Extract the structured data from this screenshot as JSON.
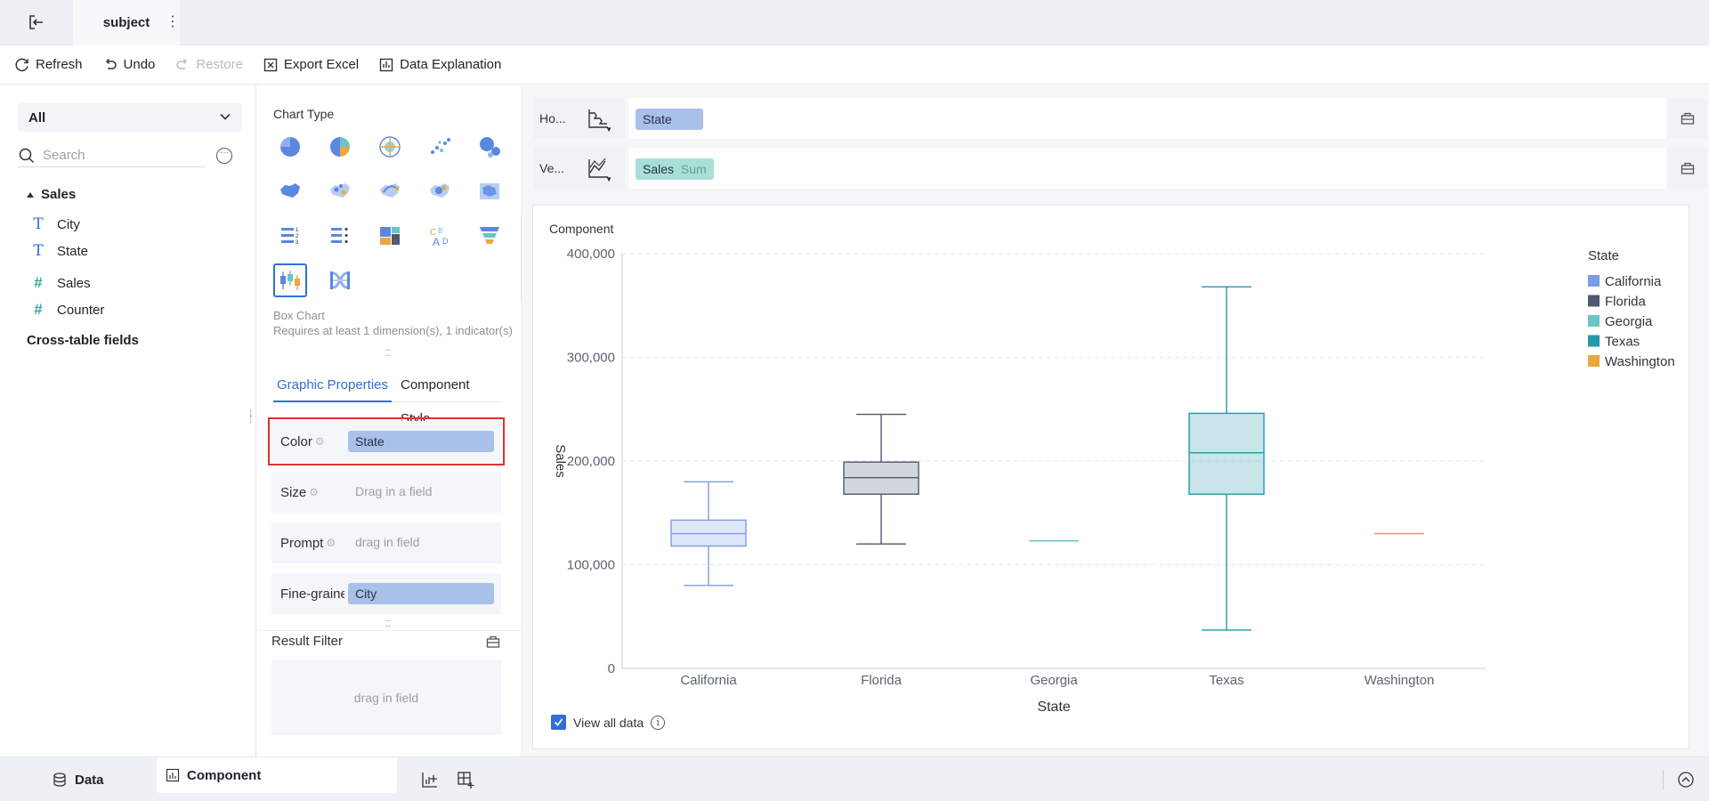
{
  "topbar": {
    "tab_title": "subject",
    "more_glyph": "⋮"
  },
  "toolbar": {
    "refresh": "Refresh",
    "undo": "Undo",
    "restore": "Restore",
    "export_excel": "Export Excel",
    "data_explanation": "Data Explanation"
  },
  "left": {
    "selector": "All",
    "search_placeholder": "Search",
    "groups": [
      {
        "name": "Sales",
        "fields": [
          {
            "name": "City",
            "type": "dimension"
          },
          {
            "name": "State",
            "type": "dimension"
          },
          {
            "name": "Sales",
            "type": "indicator"
          },
          {
            "name": "Counter",
            "type": "indicator"
          }
        ]
      },
      {
        "name": "Cross-table fields"
      }
    ]
  },
  "middle": {
    "chart_type_title": "Chart Type",
    "selected_chart_name": "Box Chart",
    "selected_chart_desc": "Requires at least 1 dimension(s), 1 indicator(s)",
    "tabs": [
      "Graphic Properties",
      "Component Style"
    ],
    "props": {
      "color": {
        "label": "Color",
        "value": "State"
      },
      "size": {
        "label": "Size",
        "placeholder": "Drag in a field"
      },
      "prompt": {
        "label": "Prompt",
        "placeholder": "drag in field"
      },
      "finegrain": {
        "label": "Fine-grained",
        "value": "City"
      }
    },
    "result_filter": {
      "title": "Result Filter",
      "placeholder": "drag in field"
    }
  },
  "right": {
    "horizontal": {
      "label": "Ho...",
      "field": "State"
    },
    "vertical": {
      "label": "Ve...",
      "field": "Sales",
      "agg": "Sum"
    },
    "component_title": "Component",
    "view_all_data": "View all data"
  },
  "bottom": {
    "data_tab": "Data",
    "component_tab": "Component"
  },
  "colors": {
    "California": "#7b9ce6",
    "Florida": "#4e5a6e",
    "Georgia": "#6cc4c4",
    "Texas": "#2698a8",
    "Washington": "#eaa83f"
  },
  "chart_data": {
    "type": "box",
    "xlabel": "State",
    "ylabel": "Sales",
    "ylim": [
      0,
      400000
    ],
    "yticks": [
      0,
      100000,
      200000,
      300000,
      400000
    ],
    "ytick_labels": [
      "0",
      "100,000",
      "200,000",
      "300,000",
      "400,000"
    ],
    "grid": true,
    "legend_title": "State",
    "legend_position": "top-right",
    "categories": [
      "California",
      "Florida",
      "Georgia",
      "Texas",
      "Washington"
    ],
    "boxes": [
      {
        "name": "California",
        "min": 80000,
        "q1": 118000,
        "median": 130000,
        "q3": 143000,
        "max": 180000
      },
      {
        "name": "Florida",
        "min": 120000,
        "q1": 168000,
        "median": 184000,
        "q3": 199000,
        "max": 245000
      },
      {
        "name": "Georgia",
        "min": 123000,
        "q1": 123000,
        "median": 123000,
        "q3": 123000,
        "max": 123000
      },
      {
        "name": "Texas",
        "min": 37000,
        "q1": 168000,
        "median": 208000,
        "q3": 246000,
        "max": 368000
      },
      {
        "name": "Washington",
        "min": 130000,
        "q1": 130000,
        "median": 130000,
        "q3": 130000,
        "max": 130000
      }
    ]
  }
}
